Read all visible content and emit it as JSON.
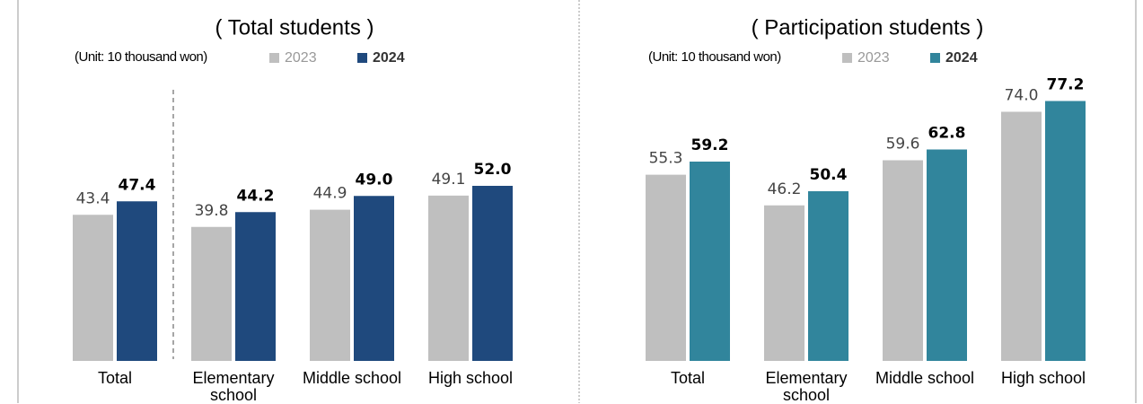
{
  "chart_data": [
    {
      "type": "bar",
      "title": "( Total students )",
      "unit": "(Unit: 10 thousand won)",
      "categories": [
        "Total",
        "Elementary school",
        "Middle school",
        "High school"
      ],
      "ylim": [
        0,
        80
      ],
      "series": [
        {
          "name": "2023",
          "color": "#bfbfbf",
          "values": [
            43.4,
            39.8,
            44.9,
            49.1
          ],
          "value_labels": [
            "43.4",
            "39.8",
            "44.9",
            "49.1"
          ]
        },
        {
          "name": "2024",
          "color": "#1f497d",
          "values": [
            47.4,
            44.2,
            49.0,
            52.0
          ],
          "value_labels": [
            "47.4",
            "44.2",
            "49.0",
            "52.0"
          ]
        }
      ]
    },
    {
      "type": "bar",
      "title": "( Participation students )",
      "unit": "(Unit: 10 thousand won)",
      "categories": [
        "Total",
        "Elementary school",
        "Middle school",
        "High school"
      ],
      "ylim": [
        0,
        80
      ],
      "series": [
        {
          "name": "2023",
          "color": "#bfbfbf",
          "values": [
            55.3,
            46.2,
            59.6,
            74.0
          ],
          "value_labels": [
            "55.3",
            "46.2",
            "59.6",
            "74.0"
          ]
        },
        {
          "name": "2024",
          "color": "#31859c",
          "values": [
            59.2,
            50.4,
            62.8,
            77.2
          ],
          "value_labels": [
            "59.2",
            "50.4",
            "62.8",
            "77.2"
          ]
        }
      ]
    }
  ]
}
